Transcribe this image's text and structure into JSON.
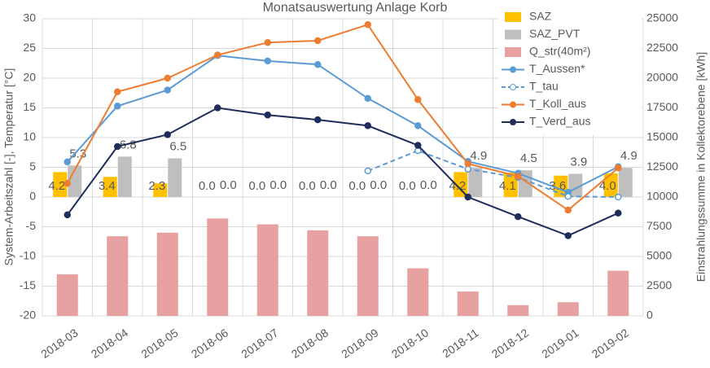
{
  "chart_data": {
    "type": "combo",
    "title": "Monatsauswertung Anlage Korb",
    "y_label": "System-Arbeitszahl [-], Temperatur [°C]",
    "y2_label": "Einstrahlungssumme in Kollektorebene [kWh]",
    "categories": [
      "2018-03",
      "2018-04",
      "2018-05",
      "2018-06",
      "2018-07",
      "2018-08",
      "2018-09",
      "2018-10",
      "2018-11",
      "2018-12",
      "2019-01",
      "2019-02"
    ],
    "ylim": [
      -20,
      30
    ],
    "yticks": [
      -20,
      -15,
      -10,
      -5,
      0,
      5,
      10,
      15,
      20,
      25,
      30
    ],
    "y2lim": [
      0,
      25000
    ],
    "y2ticks": [
      0,
      2500,
      5000,
      7500,
      10000,
      12500,
      15000,
      17500,
      20000,
      22500,
      25000
    ],
    "grid": true,
    "legend": "top-right",
    "series": [
      {
        "name": "SAZ",
        "type": "bar",
        "color": "#ffc000",
        "values": [
          4.2,
          3.4,
          2.3,
          0,
          0,
          0,
          0,
          0,
          4.2,
          4.1,
          3.6,
          4.0
        ],
        "value_labels": [
          "4.2",
          "3.4",
          "2.3",
          "0.0",
          "0.0",
          "0.0",
          "0.0",
          "0.0",
          "4.2",
          "4.1",
          "3.6",
          "4.0"
        ]
      },
      {
        "name": "SAZ_PVT",
        "type": "bar",
        "color": "#bfbfbf",
        "values": [
          5.3,
          6.8,
          6.5,
          0,
          0,
          0,
          0,
          0,
          4.9,
          4.5,
          3.9,
          4.9
        ],
        "value_labels": [
          "5.3",
          "6.8",
          "6.5",
          "0.0",
          "0.0",
          "0.0",
          "0.0",
          "0.0",
          "4.9",
          "4.5",
          "3.9",
          "4.9"
        ]
      },
      {
        "name": "Q_str(40m²)",
        "type": "bar",
        "axis": "y2",
        "color": "#e8a1a1",
        "values": [
          3500,
          6700,
          7000,
          8200,
          7700,
          7200,
          6700,
          4000,
          2050,
          900,
          1150,
          3800
        ]
      },
      {
        "name": "T_Aussen*",
        "type": "line",
        "color": "#5b9bd5",
        "values": [
          5.9,
          15.3,
          18.0,
          23.8,
          22.9,
          22.3,
          16.6,
          12.0,
          6.0,
          4.0,
          0.8,
          5.1
        ]
      },
      {
        "name": "T_tau",
        "type": "line",
        "line_style": "dashed",
        "color": "#5b9bd5",
        "values": [
          null,
          null,
          null,
          null,
          null,
          null,
          4.4,
          7.8,
          4.7,
          3.3,
          0.1,
          0.0
        ]
      },
      {
        "name": "T_Koll_aus",
        "type": "line",
        "color": "#ed7d31",
        "values": [
          2.3,
          17.7,
          20.0,
          23.9,
          26.0,
          26.3,
          29.0,
          16.4,
          5.6,
          3.5,
          -2.2,
          4.9
        ]
      },
      {
        "name": "T_Verd_aus",
        "type": "line",
        "color": "#1f2d5a",
        "values": [
          -3.0,
          8.5,
          10.5,
          15.0,
          13.8,
          13.0,
          12.0,
          8.7,
          0.0,
          -3.3,
          -6.5,
          -2.7
        ]
      }
    ]
  }
}
